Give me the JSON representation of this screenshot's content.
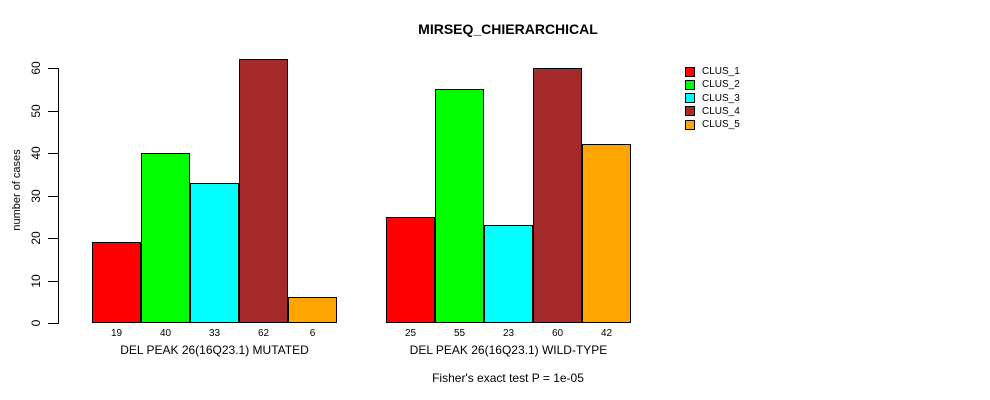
{
  "chart_data": {
    "type": "bar",
    "title": "MIRSEQ_CHIERARCHICAL",
    "ylabel": "number of cases",
    "ylim": [
      0,
      62
    ],
    "yticks": [
      0,
      10,
      20,
      30,
      40,
      50,
      60
    ],
    "grid": false,
    "legend_position": "right",
    "axis_color": "#000000",
    "bar_border_color": "#000000",
    "background_color": "#ffffff",
    "series": [
      {
        "name": "CLUS_1",
        "color": "#FF0000"
      },
      {
        "name": "CLUS_2",
        "color": "#00FF00"
      },
      {
        "name": "CLUS_3",
        "color": "#00FFFF"
      },
      {
        "name": "CLUS_4",
        "color": "#A52A2A"
      },
      {
        "name": "CLUS_5",
        "color": "#FFA500"
      }
    ],
    "groups": [
      {
        "label": "DEL PEAK 26(16Q23.1) MUTATED",
        "values": [
          19,
          40,
          33,
          62,
          6
        ]
      },
      {
        "label": "DEL PEAK 26(16Q23.1) WILD-TYPE",
        "values": [
          25,
          55,
          23,
          60,
          42
        ]
      }
    ],
    "annotation": "Fisher's exact test P = 1e-05"
  }
}
